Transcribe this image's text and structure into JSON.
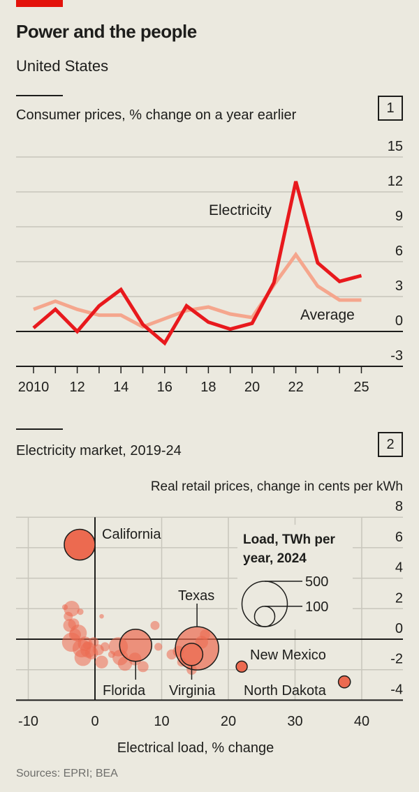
{
  "header": {
    "title": "Power and the people",
    "subtitle": "United States"
  },
  "colors": {
    "accent": "#e3120b",
    "electricity": "#e8191d",
    "average": "#f5a68d",
    "bubble": "#ec6a50"
  },
  "sources": "Sources: EPRI; BEA",
  "chart_data": [
    {
      "type": "line",
      "number": "1",
      "title": "Consumer prices, % change on a year earlier",
      "x": [
        2010,
        2011,
        2012,
        2013,
        2014,
        2015,
        2016,
        2017,
        2018,
        2019,
        2020,
        2021,
        2022,
        2023,
        2024,
        2025
      ],
      "x_tick_labels": [
        {
          "x": 2010,
          "label": "2010"
        },
        {
          "x": 2012,
          "label": "12"
        },
        {
          "x": 2014,
          "label": "14"
        },
        {
          "x": 2016,
          "label": "16"
        },
        {
          "x": 2018,
          "label": "18"
        },
        {
          "x": 2020,
          "label": "20"
        },
        {
          "x": 2022,
          "label": "22"
        },
        {
          "x": 2025,
          "label": "25"
        }
      ],
      "y_ticks": [
        15,
        12,
        9,
        6,
        3,
        0,
        -3
      ],
      "ylim": [
        -3,
        15
      ],
      "grid": true,
      "series": [
        {
          "name": "Electricity",
          "values": [
            0.3,
            1.9,
            0.0,
            2.2,
            3.6,
            0.6,
            -1.0,
            2.2,
            0.8,
            0.2,
            0.7,
            4.2,
            12.9,
            5.9,
            4.3,
            4.8
          ]
        },
        {
          "name": "Average",
          "values": [
            1.9,
            2.6,
            1.9,
            1.4,
            1.4,
            0.4,
            1.1,
            1.8,
            2.1,
            1.5,
            1.2,
            4.0,
            6.6,
            3.9,
            2.7,
            2.7
          ]
        }
      ]
    },
    {
      "type": "scatter",
      "number": "2",
      "title": "Electricity market, 2019-24",
      "ylabel": "Real retail prices, change in cents per kWh",
      "xlabel": "Electrical load, % change",
      "x_ticks": [
        -10,
        0,
        10,
        20,
        30,
        40
      ],
      "y_ticks": [
        8,
        6,
        4,
        2,
        0,
        -2,
        -4
      ],
      "xlim": [
        -10,
        40
      ],
      "ylim": [
        -4,
        8
      ],
      "grid": true,
      "size_legend": {
        "title_line1": "Load, TWh per",
        "title_line2": "year, 2024",
        "values": [
          500,
          100
        ]
      },
      "labelled_points": [
        {
          "name": "California",
          "x": -2.3,
          "y": 6.2,
          "load": 230
        },
        {
          "name": "Texas",
          "x": 15.3,
          "y": -0.6,
          "load": 455
        },
        {
          "name": "Florida",
          "x": 6.1,
          "y": -0.4,
          "load": 250
        },
        {
          "name": "Virginia",
          "x": 14.5,
          "y": -1.0,
          "load": 120
        },
        {
          "name": "New Mexico",
          "x": 22.0,
          "y": -1.8,
          "load": 30
        },
        {
          "name": "North Dakota",
          "x": 37.4,
          "y": -2.8,
          "load": 35
        }
      ],
      "other_points": [
        [
          -3.5,
          2.0,
          60
        ],
        [
          -4.0,
          1.5,
          20
        ],
        [
          -3.2,
          1.0,
          30
        ],
        [
          -3.8,
          0.9,
          40
        ],
        [
          -3.0,
          0.3,
          35
        ],
        [
          -2.5,
          0.4,
          70
        ],
        [
          -3.5,
          -0.2,
          90
        ],
        [
          -2.0,
          -0.6,
          80
        ],
        [
          -1.0,
          -0.7,
          60
        ],
        [
          -1.5,
          -0.3,
          50
        ],
        [
          -0.5,
          -0.9,
          40
        ],
        [
          0.5,
          -0.7,
          30
        ],
        [
          -1.8,
          -1.2,
          70
        ],
        [
          -0.2,
          -0.2,
          25
        ],
        [
          1.0,
          -1.5,
          40
        ],
        [
          1.5,
          -0.5,
          20
        ],
        [
          3.5,
          -0.5,
          90
        ],
        [
          3.8,
          -1.2,
          60
        ],
        [
          4.5,
          -1.6,
          50
        ],
        [
          6.0,
          -1.3,
          40
        ],
        [
          7.2,
          -1.8,
          30
        ],
        [
          9.0,
          0.9,
          20
        ],
        [
          9.5,
          -0.5,
          15
        ],
        [
          11.5,
          -1.0,
          25
        ],
        [
          12.5,
          -0.8,
          30
        ],
        [
          13.0,
          -1.5,
          20
        ],
        [
          16.5,
          0.3,
          25
        ],
        [
          16.0,
          -0.2,
          40
        ],
        [
          14.5,
          -2.0,
          25
        ],
        [
          1.0,
          1.5,
          5
        ],
        [
          -4.5,
          2.1,
          8
        ],
        [
          -2.2,
          1.8,
          10
        ],
        [
          2.5,
          -1.0,
          12
        ],
        [
          -1.2,
          -0.4,
          15
        ]
      ]
    }
  ]
}
